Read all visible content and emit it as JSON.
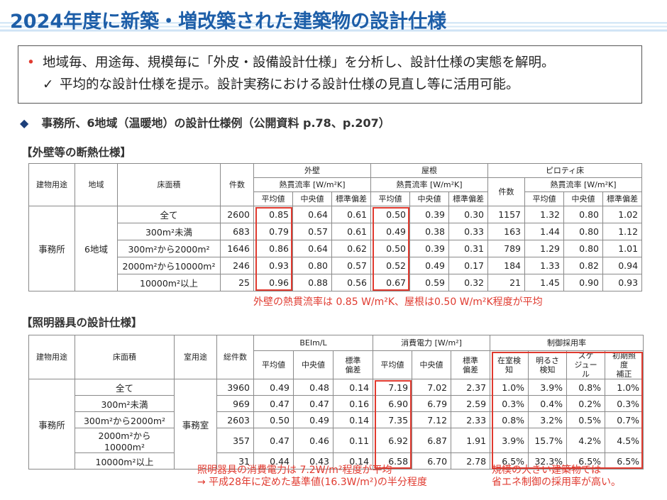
{
  "header": {
    "title": "2024年度に新築・増改築された建築物の設計仕様"
  },
  "summary": {
    "points": [
      "地域毎、用途毎、規模毎に「外皮・設備設計仕様」を分析し、設計仕様の実態を解明。",
      "平均的な設計仕様を提示。設計実務における設計仕様の見直し等に活用可能。"
    ]
  },
  "subheading": "事務所、6地域（温暖地）の設計仕様例（公開資料 p.78、p.207）",
  "insulation": {
    "heading": "【外壁等の断熱仕様】",
    "columns": {
      "use": "建物用途",
      "region": "地域",
      "area": "床面積",
      "count": "件数"
    },
    "wall": {
      "label": "外壁",
      "unit": "熱貫流率 [W/m²K]",
      "stats": [
        "平均値",
        "中央値",
        "標準偏差"
      ]
    },
    "roof": {
      "label": "屋根",
      "unit": "熱貫流率 [W/m²K]",
      "stats": [
        "平均値",
        "中央値",
        "標準偏差"
      ]
    },
    "piloti": {
      "label": "ピロティ床",
      "count": "件数",
      "unit": "熱貫流率 [W/m²K]",
      "stats": [
        "平均値",
        "中央値",
        "標準偏差"
      ]
    },
    "use": "事務所",
    "region": "6地域",
    "rows": [
      [
        "全て",
        "2600",
        "0.85",
        "0.64",
        "0.61",
        "0.50",
        "0.39",
        "0.30",
        "1157",
        "1.32",
        "0.80",
        "1.02"
      ],
      [
        "300m²未満",
        "683",
        "0.79",
        "0.57",
        "0.61",
        "0.49",
        "0.38",
        "0.33",
        "163",
        "1.44",
        "0.80",
        "1.12"
      ],
      [
        "300m²から2000m²",
        "1646",
        "0.86",
        "0.64",
        "0.62",
        "0.50",
        "0.39",
        "0.31",
        "789",
        "1.29",
        "0.80",
        "1.01"
      ],
      [
        "2000m²から10000m²",
        "246",
        "0.93",
        "0.80",
        "0.57",
        "0.52",
        "0.49",
        "0.17",
        "184",
        "1.33",
        "0.82",
        "0.94"
      ],
      [
        "10000m²以上",
        "25",
        "0.96",
        "0.88",
        "0.56",
        "0.67",
        "0.59",
        "0.32",
        "21",
        "1.45",
        "0.90",
        "0.93"
      ]
    ],
    "note": "外壁の熱貫流率は 0.85 W/m²K、屋根は0.50 W/m²K程度が平均"
  },
  "lighting": {
    "heading": "【照明器具の設計仕様】",
    "columns": {
      "use": "建物用途",
      "area": "床面積",
      "room_use": "室用途",
      "total": "総件数"
    },
    "bei": {
      "label": "BEIm/L",
      "stats": [
        "平均値",
        "中央値",
        "標準\n偏差"
      ]
    },
    "power": {
      "label": "消費電力 [W/m²]",
      "stats": [
        "平均値",
        "中央値",
        "標準\n偏差"
      ]
    },
    "control": {
      "label": "制御採用率",
      "items": [
        "在室検知",
        "明るさ\n検知",
        "スケ\nジュール",
        "初期照度\n補正"
      ]
    },
    "use": "事務所",
    "room_use": "事務室",
    "rows": [
      [
        "全て",
        "3960",
        "0.49",
        "0.48",
        "0.14",
        "7.19",
        "7.02",
        "2.37",
        "1.0%",
        "3.9%",
        "0.8%",
        "1.0%"
      ],
      [
        "300m²未満",
        "969",
        "0.47",
        "0.47",
        "0.16",
        "6.90",
        "6.79",
        "2.59",
        "0.3%",
        "0.4%",
        "0.2%",
        "0.3%"
      ],
      [
        "300m²から2000m²",
        "2603",
        "0.50",
        "0.49",
        "0.14",
        "7.35",
        "7.12",
        "2.33",
        "0.8%",
        "3.2%",
        "0.5%",
        "0.7%"
      ],
      [
        "2000m²から10000m²",
        "357",
        "0.47",
        "0.46",
        "0.11",
        "6.92",
        "6.87",
        "1.91",
        "3.9%",
        "15.7%",
        "4.2%",
        "4.5%"
      ],
      [
        "10000m²以上",
        "31",
        "0.44",
        "0.43",
        "0.14",
        "6.58",
        "6.70",
        "2.78",
        "6.5%",
        "32.3%",
        "6.5%",
        "6.5%"
      ]
    ],
    "notes": [
      {
        "lines": [
          "照明器具の消費電力は 7.2W/m²程度が平均",
          "→ 平成28年に定めた基準値(16.3W/m²)の半分程度"
        ]
      },
      {
        "lines": [
          "規模の大きい建築物では",
          "省エネ制御の採用率が高い。"
        ]
      }
    ]
  }
}
